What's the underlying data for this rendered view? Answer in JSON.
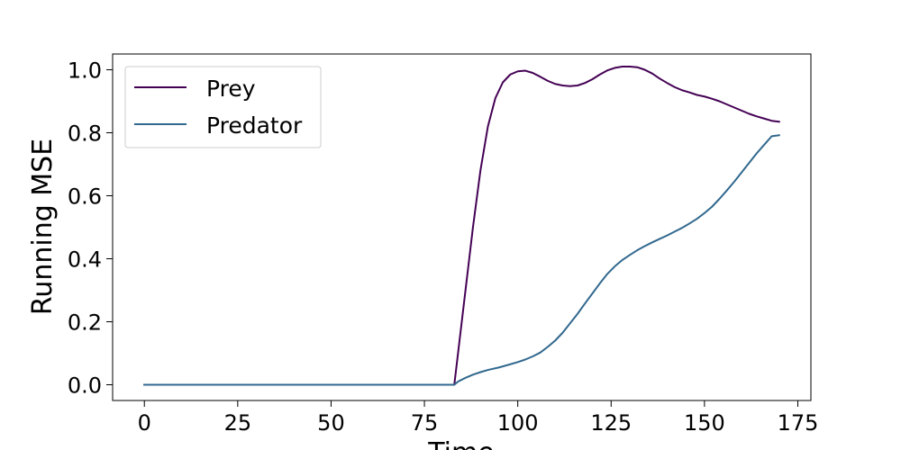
{
  "chart_data": {
    "type": "line",
    "xlabel": "Time",
    "ylabel": "Running MSE",
    "xlim": [
      -8.5,
      178.5
    ],
    "ylim": [
      -0.05,
      1.05
    ],
    "xticks": [
      0,
      25,
      50,
      75,
      100,
      125,
      150,
      175
    ],
    "yticks": [
      0.0,
      0.2,
      0.4,
      0.6,
      0.8,
      1.0
    ],
    "xtick_labels": [
      "0",
      "25",
      "50",
      "75",
      "100",
      "125",
      "150",
      "175"
    ],
    "ytick_labels": [
      "0.0",
      "0.2",
      "0.4",
      "0.6",
      "0.8",
      "1.0"
    ],
    "grid": false,
    "legend_position": "upper-left",
    "series": [
      {
        "name": "Prey",
        "color": "#440154",
        "x": [
          0,
          83,
          84,
          86,
          88,
          90,
          92,
          94,
          96,
          98,
          100,
          102,
          104,
          106,
          108,
          110,
          112,
          114,
          116,
          118,
          120,
          122,
          124,
          126,
          128,
          130,
          132,
          134,
          136,
          138,
          140,
          142,
          144,
          146,
          148,
          150,
          152,
          154,
          156,
          158,
          160,
          162,
          164,
          166,
          168,
          170
        ],
        "y": [
          0.0,
          0.0,
          0.1,
          0.3,
          0.5,
          0.68,
          0.82,
          0.91,
          0.96,
          0.985,
          0.995,
          0.997,
          0.99,
          0.978,
          0.965,
          0.955,
          0.95,
          0.948,
          0.95,
          0.958,
          0.97,
          0.985,
          0.998,
          1.006,
          1.01,
          1.01,
          1.008,
          1.0,
          0.988,
          0.972,
          0.958,
          0.945,
          0.935,
          0.928,
          0.92,
          0.915,
          0.908,
          0.9,
          0.89,
          0.88,
          0.87,
          0.86,
          0.852,
          0.845,
          0.838,
          0.835
        ]
      },
      {
        "name": "Predator",
        "color": "#31688e",
        "x": [
          0,
          83,
          84,
          86,
          88,
          90,
          92,
          95,
          98,
          100,
          102,
          104,
          106,
          108,
          110,
          112,
          114,
          116,
          118,
          120,
          122,
          124,
          126,
          128,
          130,
          132,
          134,
          136,
          138,
          140,
          142,
          144,
          146,
          148,
          150,
          152,
          154,
          156,
          158,
          160,
          162,
          164,
          166,
          168,
          170
        ],
        "y": [
          0.0,
          0.0,
          0.01,
          0.022,
          0.032,
          0.04,
          0.047,
          0.055,
          0.065,
          0.072,
          0.08,
          0.09,
          0.102,
          0.12,
          0.14,
          0.165,
          0.195,
          0.225,
          0.258,
          0.29,
          0.322,
          0.352,
          0.376,
          0.396,
          0.412,
          0.427,
          0.44,
          0.452,
          0.463,
          0.474,
          0.486,
          0.498,
          0.512,
          0.527,
          0.545,
          0.565,
          0.59,
          0.617,
          0.645,
          0.675,
          0.705,
          0.735,
          0.762,
          0.789,
          0.792
        ]
      }
    ]
  }
}
